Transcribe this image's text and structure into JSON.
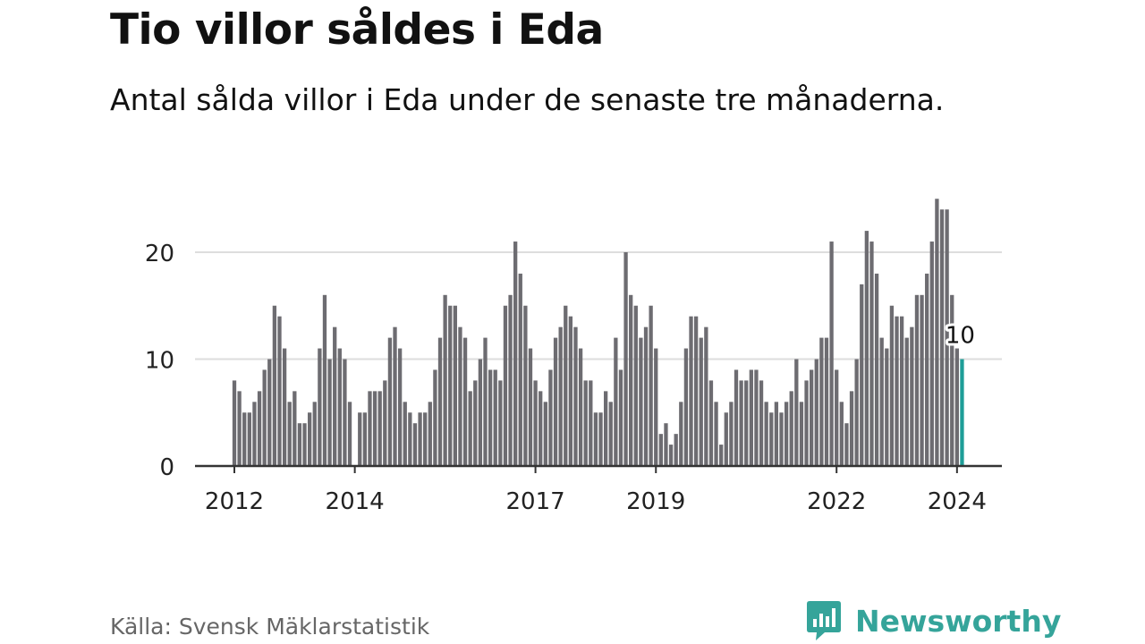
{
  "header": {
    "title": "Tio villor såldes i Eda",
    "subtitle": "Antal sålda villor i Eda under de senaste tre månaderna."
  },
  "footer": {
    "source": "Källa: Svensk Mäklarstatistik",
    "brand_name": "Newsworthy",
    "brand_icon": "newsworthy-logo-icon",
    "brand_color": "#35a49a"
  },
  "chart_data": {
    "type": "bar",
    "title": "Tio villor såldes i Eda",
    "subtitle": "Antal sålda villor i Eda under de senaste tre månaderna.",
    "xlabel": "",
    "ylabel": "",
    "ylim": [
      0,
      25
    ],
    "y_ticks": [
      0,
      10,
      20
    ],
    "grid": true,
    "x_tick_labels": [
      {
        "label": "2012",
        "index": 0
      },
      {
        "label": "2014",
        "index": 24
      },
      {
        "label": "2017",
        "index": 60
      },
      {
        "label": "2019",
        "index": 84
      },
      {
        "label": "2022",
        "index": 120
      },
      {
        "label": "2024",
        "index": 144
      }
    ],
    "series_start": "2012-01",
    "values": [
      8,
      7,
      5,
      5,
      6,
      7,
      9,
      10,
      15,
      14,
      11,
      6,
      7,
      4,
      4,
      5,
      6,
      11,
      16,
      10,
      13,
      11,
      10,
      6,
      0,
      5,
      5,
      7,
      7,
      7,
      8,
      12,
      13,
      11,
      6,
      5,
      4,
      5,
      5,
      6,
      9,
      12,
      16,
      15,
      15,
      13,
      12,
      7,
      8,
      10,
      12,
      9,
      9,
      8,
      15,
      16,
      21,
      18,
      15,
      11,
      8,
      7,
      6,
      9,
      12,
      13,
      15,
      14,
      13,
      11,
      8,
      8,
      5,
      5,
      7,
      6,
      12,
      9,
      20,
      16,
      15,
      12,
      13,
      15,
      11,
      3,
      4,
      2,
      3,
      6,
      11,
      14,
      14,
      12,
      13,
      8,
      6,
      2,
      5,
      6,
      9,
      8,
      8,
      9,
      9,
      8,
      6,
      5,
      6,
      5,
      6,
      7,
      10,
      6,
      8,
      9,
      10,
      12,
      12,
      21,
      9,
      6,
      4,
      7,
      10,
      17,
      22,
      21,
      18,
      12,
      11,
      15,
      14,
      14,
      12,
      13,
      16,
      16,
      18,
      21,
      25,
      24,
      24,
      16,
      11,
      10
    ],
    "highlight_index": 145,
    "highlight_label": "10",
    "bar_color": "#6d6c71",
    "highlight_color": "#1f9e98",
    "gridline_color": "#dddddd",
    "axis_color": "#333333",
    "tick_label_color": "#222222"
  }
}
